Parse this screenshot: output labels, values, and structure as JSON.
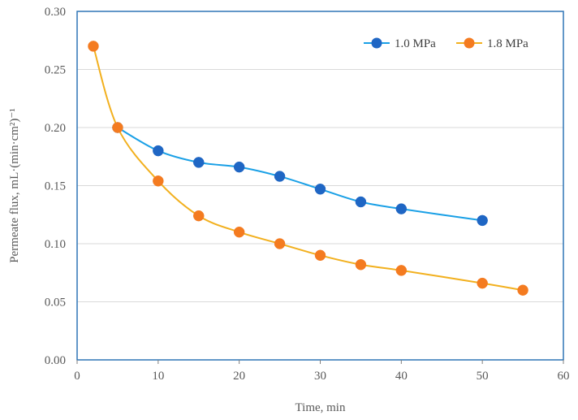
{
  "chart_data": {
    "type": "line",
    "title": "",
    "xlabel": "Time, min",
    "ylabel": "Permeate flux, mL·(min·cm²)⁻¹",
    "xlim": [
      0,
      60
    ],
    "ylim": [
      0,
      0.3
    ],
    "xticks": [
      0,
      10,
      20,
      30,
      40,
      50,
      60
    ],
    "yticks": [
      "0.00",
      "0.05",
      "0.10",
      "0.15",
      "0.20",
      "0.25",
      "0.30"
    ],
    "grid": true,
    "legend_position": "top-right",
    "series": [
      {
        "name": "1.0 MPa",
        "line_color": "#1aa0e6",
        "marker_color": "#1f66c4",
        "x": [
          5,
          10,
          15,
          20,
          25,
          30,
          35,
          40,
          50
        ],
        "y": [
          0.2,
          0.18,
          0.17,
          0.166,
          0.158,
          0.147,
          0.136,
          0.13,
          0.12
        ]
      },
      {
        "name": "1.8 MPa",
        "line_color": "#f2b01e",
        "marker_color": "#f47b20",
        "x": [
          2,
          5,
          10,
          15,
          20,
          25,
          30,
          35,
          40,
          50,
          55
        ],
        "y": [
          0.27,
          0.2,
          0.154,
          0.124,
          0.11,
          0.1,
          0.09,
          0.082,
          0.077,
          0.066,
          0.06
        ]
      }
    ]
  }
}
